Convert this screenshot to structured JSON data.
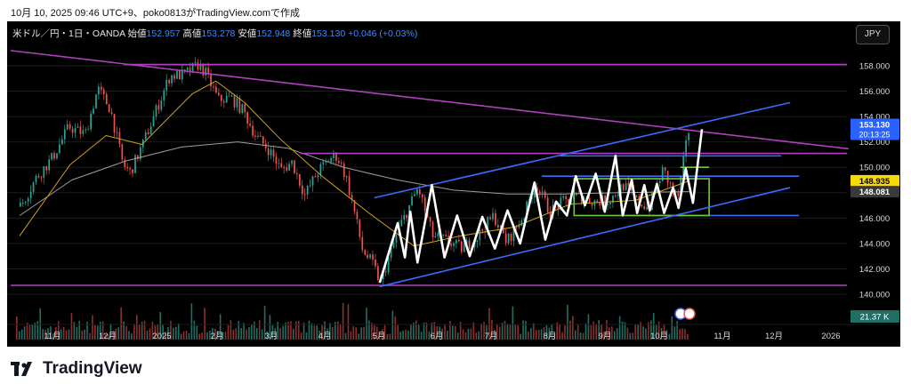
{
  "top_caption": "10月 10, 2025 09:46 UTC+9、poko0813がTradingView.comで作成",
  "header": {
    "symbol": "米ドル／円・1日・OANDA",
    "open_label": "始値",
    "open": "152.957",
    "high_label": "高値",
    "high": "153.278",
    "low_label": "安値",
    "low": "152.948",
    "close_label": "終値",
    "close": "153.130",
    "change": "+0.046 (+0.03%)"
  },
  "currency_button": "JPY",
  "brand": "TradingView",
  "colors": {
    "background": "#000000",
    "price_axis_text": "#d9d9d9",
    "candle_up": "#26a69a",
    "candle_down": "#ef5350",
    "trendline_magenta": "#b040c0",
    "channel_blue": "#3d6bff",
    "zigzag": "#ffffff",
    "range_box": "#6ecb3c",
    "ma_fast": "#d4a017",
    "ma_slow": "#9e9e9e"
  },
  "chart_data": {
    "type": "candlestick",
    "ylim": [
      138.0,
      160.0
    ],
    "y_ticks": [
      "140.000",
      "142.000",
      "144.000",
      "146.000",
      "148.000",
      "150.000",
      "152.000",
      "154.000",
      "156.000",
      "158.000"
    ],
    "x_ticks": [
      "11月",
      "12月",
      "2025",
      "2月",
      "3月",
      "4月",
      "5月",
      "6月",
      "7月",
      "8月",
      "9月",
      "10月",
      "11月",
      "12月",
      "2026"
    ],
    "price_labels": [
      {
        "text": "153.130",
        "sub": "20:13:25",
        "value": 153.13,
        "color": "#2962ff"
      },
      {
        "text": "148.935",
        "value": 148.935,
        "color": "#f5d90a"
      },
      {
        "text": "148.081",
        "value": 148.081,
        "color": "#3a3a3a"
      }
    ],
    "volume_label": "21.37 K",
    "close_path": [
      [
        "2024-10-03",
        146.9
      ],
      [
        "2024-10-12",
        149.2
      ],
      [
        "2024-10-21",
        150.8
      ],
      [
        "2024-10-30",
        153.2
      ],
      [
        "2024-11-08",
        152.6
      ],
      [
        "2024-11-15",
        156.2
      ],
      [
        "2024-11-22",
        154.6
      ],
      [
        "2024-11-29",
        150.2
      ],
      [
        "2024-12-03",
        149.6
      ],
      [
        "2024-12-10",
        151.8
      ],
      [
        "2024-12-18",
        154.7
      ],
      [
        "2024-12-25",
        157.2
      ],
      [
        "2025-01-02",
        157.3
      ],
      [
        "2025-01-10",
        158.1
      ],
      [
        "2025-01-14",
        157.4
      ],
      [
        "2025-01-21",
        155.3
      ],
      [
        "2025-01-28",
        155.5
      ],
      [
        "2025-02-04",
        154.4
      ],
      [
        "2025-02-11",
        152.4
      ],
      [
        "2025-02-18",
        151.4
      ],
      [
        "2025-02-25",
        149.8
      ],
      [
        "2025-03-03",
        150.4
      ],
      [
        "2025-03-10",
        147.8
      ],
      [
        "2025-03-17",
        149.6
      ],
      [
        "2025-03-24",
        150.7
      ],
      [
        "2025-03-28",
        150.9
      ],
      [
        "2025-04-02",
        149.2
      ],
      [
        "2025-04-07",
        146.2
      ],
      [
        "2025-04-11",
        143.5
      ],
      [
        "2025-04-17",
        142.3
      ],
      [
        "2025-04-21",
        140.9
      ],
      [
        "2025-05-01",
        145.1
      ],
      [
        "2025-05-12",
        148.4
      ],
      [
        "2025-05-20",
        144.6
      ],
      [
        "2025-05-28",
        144.2
      ],
      [
        "2025-06-05",
        143.6
      ],
      [
        "2025-06-13",
        144.4
      ],
      [
        "2025-06-23",
        146.2
      ],
      [
        "2025-06-30",
        144.1
      ],
      [
        "2025-07-10",
        146.3
      ],
      [
        "2025-07-16",
        148.8
      ],
      [
        "2025-07-24",
        146.5
      ],
      [
        "2025-08-01",
        147.3
      ],
      [
        "2025-08-08",
        147.7
      ],
      [
        "2025-08-18",
        147.3
      ],
      [
        "2025-08-26",
        147.4
      ],
      [
        "2025-09-03",
        148.6
      ],
      [
        "2025-09-10",
        147.4
      ],
      [
        "2025-09-17",
        146.8
      ],
      [
        "2025-09-25",
        149.8
      ],
      [
        "2025-10-03",
        147.4
      ],
      [
        "2025-10-09",
        152.8
      ],
      [
        "2025-10-10",
        153.13
      ]
    ],
    "ma_fast": [
      [
        "2024-10-03",
        144.6
      ],
      [
        "2024-10-31",
        150.2
      ],
      [
        "2024-11-20",
        152.5
      ],
      [
        "2024-12-10",
        151.8
      ],
      [
        "2025-01-07",
        155.8
      ],
      [
        "2025-01-20",
        156.8
      ],
      [
        "2025-02-05",
        155.1
      ],
      [
        "2025-02-25",
        152.2
      ],
      [
        "2025-03-20",
        149.3
      ],
      [
        "2025-04-15",
        146.4
      ],
      [
        "2025-05-10",
        143.8
      ],
      [
        "2025-06-05",
        144.6
      ],
      [
        "2025-07-05",
        145.3
      ],
      [
        "2025-08-05",
        147.1
      ],
      [
        "2025-09-10",
        147.4
      ],
      [
        "2025-10-10",
        148.935
      ]
    ],
    "ma_slow": [
      [
        "2024-10-03",
        146.2
      ],
      [
        "2024-11-01",
        149.0
      ],
      [
        "2024-12-01",
        150.5
      ],
      [
        "2025-01-01",
        151.6
      ],
      [
        "2025-02-01",
        152.0
      ],
      [
        "2025-03-01",
        151.5
      ],
      [
        "2025-04-01",
        150.0
      ],
      [
        "2025-05-01",
        149.0
      ],
      [
        "2025-06-01",
        148.2
      ],
      [
        "2025-07-01",
        147.9
      ],
      [
        "2025-08-01",
        147.9
      ],
      [
        "2025-09-01",
        148.0
      ],
      [
        "2025-10-10",
        148.081
      ]
    ],
    "zigzag": [
      [
        "2025-04-21",
        140.9
      ],
      [
        "2025-05-01",
        145.6
      ],
      [
        "2025-05-05",
        142.9
      ],
      [
        "2025-05-08",
        146.5
      ],
      [
        "2025-05-12",
        142.5
      ],
      [
        "2025-05-20",
        148.6
      ],
      [
        "2025-05-27",
        142.9
      ],
      [
        "2025-06-03",
        146.2
      ],
      [
        "2025-06-10",
        143.0
      ],
      [
        "2025-06-17",
        146.1
      ],
      [
        "2025-06-24",
        143.6
      ],
      [
        "2025-07-01",
        146.6
      ],
      [
        "2025-07-08",
        144.0
      ],
      [
        "2025-07-16",
        148.8
      ],
      [
        "2025-07-22",
        144.3
      ],
      [
        "2025-07-28",
        147.3
      ],
      [
        "2025-08-03",
        146.2
      ],
      [
        "2025-08-08",
        149.3
      ],
      [
        "2025-08-13",
        147.0
      ],
      [
        "2025-08-19",
        149.5
      ],
      [
        "2025-08-24",
        146.5
      ],
      [
        "2025-08-30",
        150.9
      ],
      [
        "2025-09-03",
        146.2
      ],
      [
        "2025-09-08",
        149.0
      ],
      [
        "2025-09-11",
        146.4
      ],
      [
        "2025-09-15",
        148.6
      ],
      [
        "2025-09-18",
        146.6
      ],
      [
        "2025-09-22",
        148.7
      ],
      [
        "2025-09-26",
        146.4
      ],
      [
        "2025-10-01",
        148.4
      ],
      [
        "2025-10-04",
        146.8
      ],
      [
        "2025-10-08",
        149.9
      ],
      [
        "2025-10-12",
        147.2
      ],
      [
        "2025-10-17",
        153.0
      ]
    ],
    "trendlines": [
      {
        "name": "descending-resistance",
        "from": [
          "2024-09-28",
          159.2
        ],
        "to": [
          "2026-01-28",
          151.1
        ],
        "color": "#b040c0"
      },
      {
        "name": "channel-upper",
        "from": [
          "2025-04-18",
          147.6
        ],
        "to": [
          "2025-12-05",
          155.1
        ],
        "color": "#3d6bff"
      },
      {
        "name": "channel-lower",
        "from": [
          "2025-04-21",
          140.6
        ],
        "to": [
          "2025-12-05",
          148.4
        ],
        "color": "#3d6bff"
      }
    ],
    "horizontal_lines": [
      {
        "value": 158.1,
        "from": "2024-11-30",
        "to": "2026-01-28",
        "color": "#b040c0"
      },
      {
        "value": 151.1,
        "from": "2025-03-08",
        "to": "2026-01-28",
        "color": "#b040c0"
      },
      {
        "value": 140.7,
        "from": "2024-09-28",
        "to": "2026-01-28",
        "color": "#b040c0"
      },
      {
        "value": 150.9,
        "from": "2025-07-30",
        "to": "2025-11-30",
        "color": "#3d6bff"
      },
      {
        "value": 149.3,
        "from": "2025-07-20",
        "to": "2025-12-10",
        "color": "#3d6bff"
      },
      {
        "value": 146.2,
        "from": "2025-09-05",
        "to": "2025-12-10",
        "color": "#3d6bff"
      }
    ],
    "range_box": {
      "from": "2025-08-07",
      "to": "2025-10-21",
      "top": 149.1,
      "bottom": 146.2,
      "color": "#6ecb3c"
    },
    "breakout_line": {
      "value": 150.0,
      "from": "2025-10-05",
      "to": "2025-10-21",
      "color": "#6ecb3c"
    }
  }
}
